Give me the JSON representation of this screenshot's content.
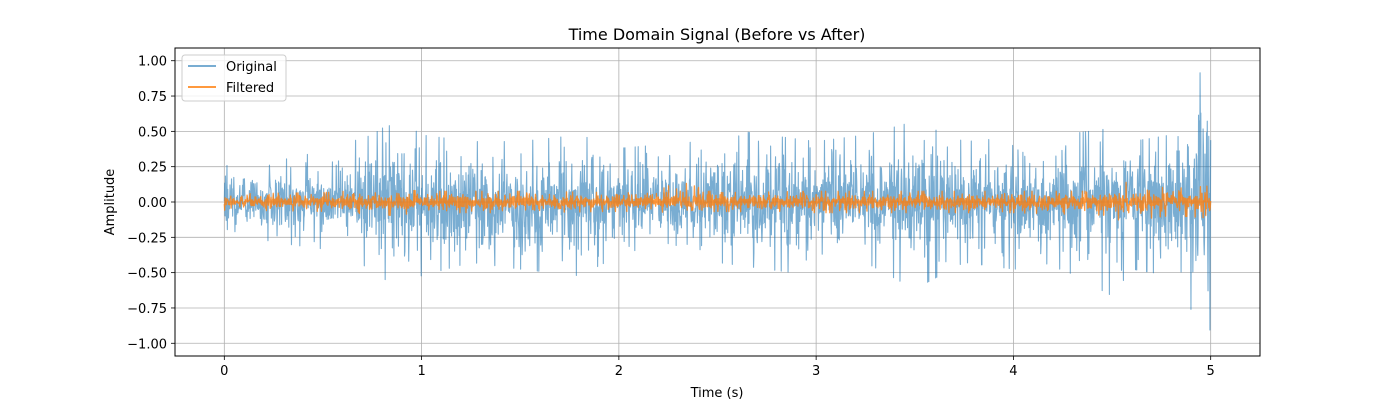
{
  "chart_data": {
    "type": "line",
    "title": "Time Domain Signal (Before vs After)",
    "xlabel": "Time (s)",
    "ylabel": "Amplitude",
    "xlim": [
      -0.25,
      5.25
    ],
    "ylim": [
      -1.09,
      1.09
    ],
    "x_ticks": [
      0,
      1,
      2,
      3,
      4,
      5
    ],
    "x_tick_labels": [
      "0",
      "1",
      "2",
      "3",
      "4",
      "5"
    ],
    "y_ticks": [
      -1.0,
      -0.75,
      -0.5,
      -0.25,
      0.0,
      0.25,
      0.5,
      0.75,
      1.0
    ],
    "y_tick_labels": [
      "−1.00",
      "−0.75",
      "−0.50",
      "−0.25",
      "0.00",
      "0.25",
      "0.50",
      "0.75",
      "1.00"
    ],
    "grid": true,
    "legend_position": "top-left",
    "series": [
      {
        "name": "Original",
        "color": "#1f77b4",
        "alpha": 0.6,
        "envelope": {
          "x": [
            0.0,
            0.25,
            0.5,
            0.75,
            0.8,
            0.9,
            1.0,
            1.25,
            1.5,
            1.8,
            2.0,
            2.4,
            2.5,
            2.75,
            3.0,
            3.25,
            3.5,
            3.75,
            4.0,
            4.25,
            4.5,
            4.6,
            4.8,
            4.9,
            4.95,
            5.0
          ],
          "y_max": [
            0.27,
            0.3,
            0.38,
            0.5,
            0.55,
            0.6,
            0.5,
            0.45,
            0.45,
            0.5,
            0.4,
            0.45,
            0.55,
            0.5,
            0.45,
            0.5,
            0.6,
            0.45,
            0.48,
            0.5,
            0.55,
            0.45,
            0.5,
            0.75,
            0.98,
            0.95
          ],
          "y_min": [
            -0.2,
            -0.3,
            -0.35,
            -0.5,
            -0.75,
            -0.55,
            -0.55,
            -0.45,
            -0.5,
            -0.55,
            -0.4,
            -0.5,
            -0.45,
            -0.5,
            -0.55,
            -0.45,
            -0.65,
            -0.45,
            -0.5,
            -0.5,
            -0.7,
            -0.5,
            -0.55,
            -0.8,
            -1.0,
            -0.95
          ]
        }
      },
      {
        "name": "Filtered",
        "color": "#ff7f0e",
        "alpha": 0.8,
        "envelope": {
          "x": [
            0.0,
            0.5,
            0.85,
            1.0,
            1.5,
            2.0,
            2.4,
            2.5,
            3.0,
            3.5,
            4.0,
            4.5,
            4.55,
            4.8,
            5.0
          ],
          "y_max": [
            0.06,
            0.07,
            0.1,
            0.08,
            0.08,
            0.07,
            0.15,
            0.07,
            0.08,
            0.08,
            0.08,
            0.08,
            0.15,
            0.1,
            0.12
          ],
          "y_min": [
            -0.06,
            -0.07,
            -0.1,
            -0.08,
            -0.08,
            -0.07,
            -0.08,
            -0.07,
            -0.08,
            -0.08,
            -0.08,
            -0.1,
            -0.15,
            -0.1,
            -0.12
          ]
        }
      }
    ]
  }
}
